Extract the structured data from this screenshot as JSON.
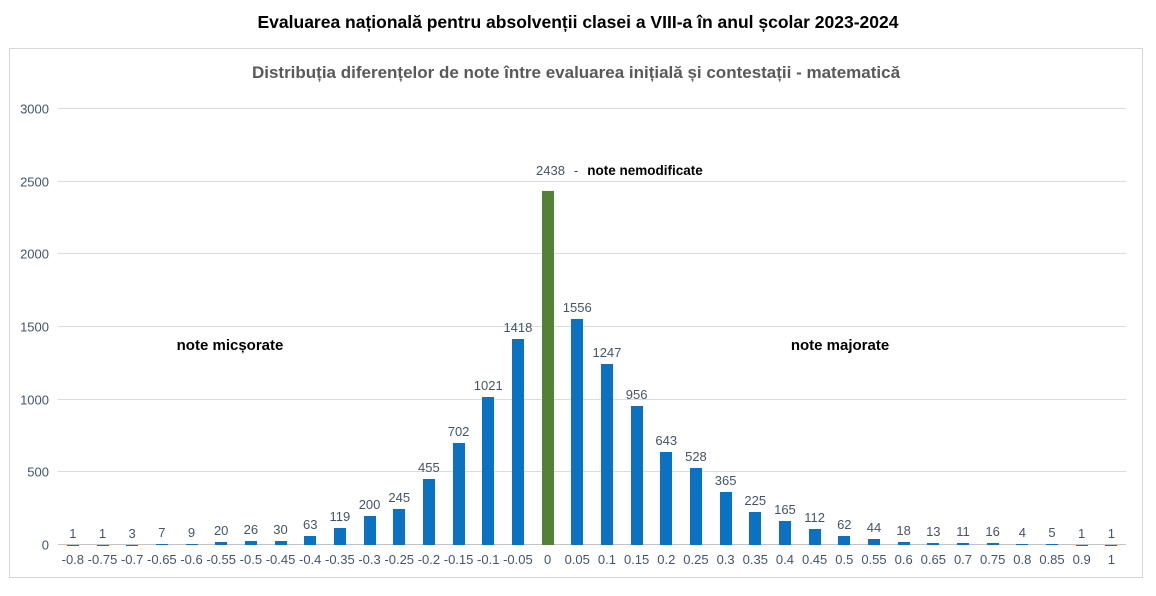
{
  "page": {
    "title": "Evaluarea națională pentru absolvenții clasei a VIII-a în anul școlar 2023-2024"
  },
  "chart": {
    "title": "Distribuția diferențelor de note între evaluarea inițială și contestații - matematică",
    "annotations": {
      "left": "note micșorate",
      "right": "note majorate",
      "center_value": "2438",
      "center_dash": "-",
      "center_label": "note nemodificate"
    }
  },
  "chart_data": {
    "type": "bar",
    "title": "Distribuția diferențelor de note între evaluarea inițială și contestații - matematică",
    "xlabel": "",
    "ylabel": "",
    "categories": [
      "-0.8",
      "-0.75",
      "-0.7",
      "-0.65",
      "-0.6",
      "-0.55",
      "-0.5",
      "-0.45",
      "-0.4",
      "-0.35",
      "-0.3",
      "-0.25",
      "-0.2",
      "-0.15",
      "-0.1",
      "-0.05",
      "0",
      "0.05",
      "0.1",
      "0.15",
      "0.2",
      "0.25",
      "0.3",
      "0.35",
      "0.4",
      "0.45",
      "0.5",
      "0.55",
      "0.6",
      "0.65",
      "0.7",
      "0.75",
      "0.8",
      "0.85",
      "0.9",
      "1"
    ],
    "values": [
      1,
      1,
      3,
      7,
      9,
      20,
      26,
      30,
      63,
      119,
      200,
      245,
      455,
      702,
      1021,
      1418,
      2438,
      1556,
      1247,
      956,
      643,
      528,
      365,
      225,
      165,
      112,
      62,
      44,
      18,
      13,
      11,
      16,
      4,
      5,
      1,
      1
    ],
    "highlight_index": 16,
    "highlight_value": 2438,
    "highlight_label": "note nemodificate",
    "bar_color": "#0b72c2",
    "highlight_color": "#548235",
    "ylim": [
      0,
      3000
    ],
    "yticks": [
      0,
      500,
      1000,
      1500,
      2000,
      2500,
      3000
    ],
    "grid": true,
    "legend": "none"
  }
}
